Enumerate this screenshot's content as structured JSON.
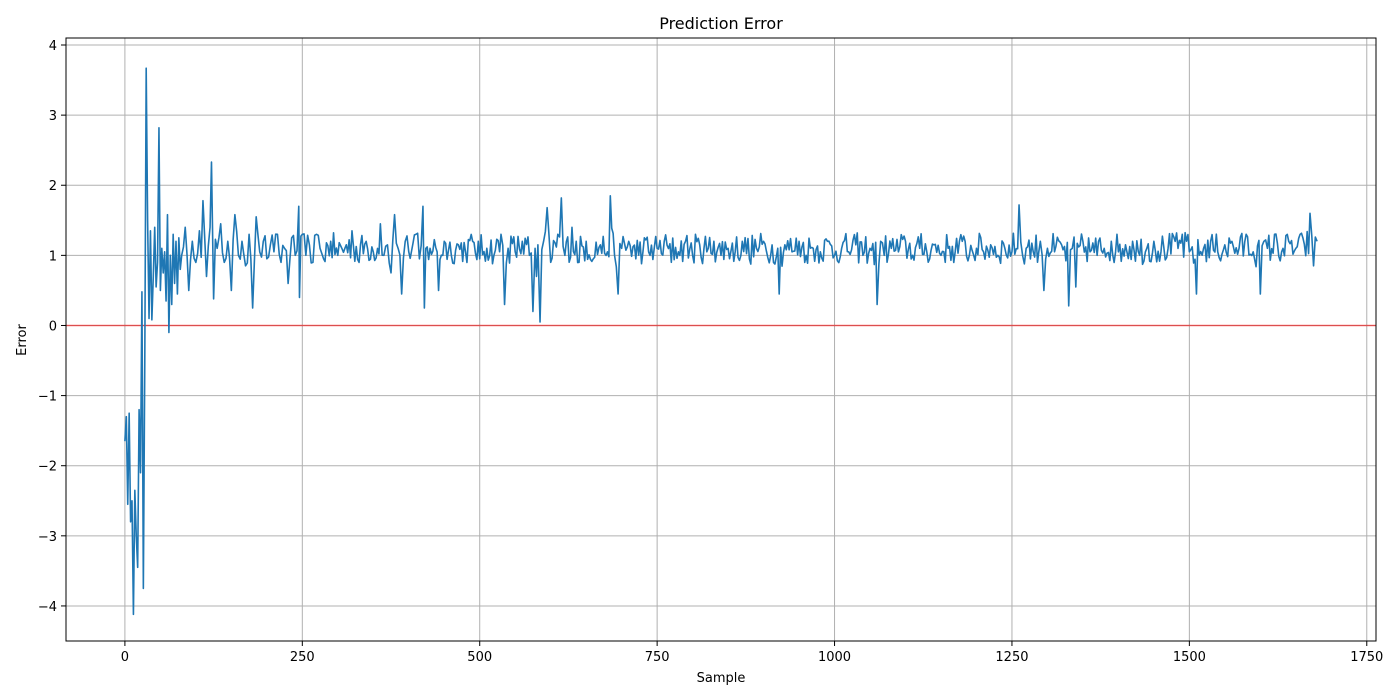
{
  "chart_data": {
    "type": "line",
    "title": "Prediction Error",
    "xlabel": "Sample",
    "ylabel": "Error",
    "xlim": [
      -83,
      1763
    ],
    "ylim": [
      -4.5,
      4.1
    ],
    "x_ticks": [
      0,
      250,
      500,
      750,
      1000,
      1250,
      1500,
      1750
    ],
    "y_ticks": [
      -4,
      -3,
      -2,
      -1,
      0,
      1,
      2,
      3,
      4
    ],
    "grid": true,
    "legend": "none",
    "reference_line": {
      "y": 0,
      "color": "#ff0000"
    },
    "series": [
      {
        "color": "#1f77b4",
        "n_samples": 1680,
        "points": [
          [
            0,
            -1.65
          ],
          [
            2,
            -1.3
          ],
          [
            4,
            -2.55
          ],
          [
            6,
            -1.25
          ],
          [
            8,
            -2.8
          ],
          [
            10,
            -2.5
          ],
          [
            12,
            -4.12
          ],
          [
            14,
            -2.35
          ],
          [
            16,
            -3.0
          ],
          [
            18,
            -3.45
          ],
          [
            20,
            -1.2
          ],
          [
            22,
            -2.1
          ],
          [
            24,
            0.48
          ],
          [
            26,
            -3.75
          ],
          [
            28,
            -0.55
          ],
          [
            30,
            3.67
          ],
          [
            32,
            1.5
          ],
          [
            34,
            0.1
          ],
          [
            36,
            1.35
          ],
          [
            38,
            0.08
          ],
          [
            40,
            0.7
          ],
          [
            42,
            1.4
          ],
          [
            44,
            0.55
          ],
          [
            46,
            0.9
          ],
          [
            48,
            2.82
          ],
          [
            50,
            0.5
          ],
          [
            52,
            1.1
          ],
          [
            54,
            0.75
          ],
          [
            56,
            1.05
          ],
          [
            58,
            0.35
          ],
          [
            60,
            1.58
          ],
          [
            62,
            -0.1
          ],
          [
            64,
            1.0
          ],
          [
            66,
            0.3
          ],
          [
            68,
            1.3
          ],
          [
            70,
            0.6
          ],
          [
            72,
            1.2
          ],
          [
            74,
            0.45
          ],
          [
            76,
            1.25
          ],
          [
            78,
            0.8
          ],
          [
            80,
            1.0
          ],
          [
            85,
            1.4
          ],
          [
            90,
            0.5
          ],
          [
            95,
            1.2
          ],
          [
            100,
            0.9
          ],
          [
            105,
            1.35
          ],
          [
            110,
            1.78
          ],
          [
            115,
            0.7
          ],
          [
            120,
            1.4
          ],
          [
            122,
            2.33
          ],
          [
            125,
            0.38
          ],
          [
            130,
            1.1
          ],
          [
            135,
            1.45
          ],
          [
            140,
            0.9
          ],
          [
            145,
            1.2
          ],
          [
            150,
            0.5
          ],
          [
            155,
            1.58
          ],
          [
            160,
            1.0
          ],
          [
            165,
            1.2
          ],
          [
            170,
            0.85
          ],
          [
            175,
            1.3
          ],
          [
            180,
            0.25
          ],
          [
            185,
            1.55
          ],
          [
            190,
            1.05
          ],
          [
            195,
            1.2
          ],
          [
            200,
            0.95
          ],
          [
            205,
            1.15
          ],
          [
            210,
            1.05
          ],
          [
            215,
            1.3
          ],
          [
            220,
            0.9
          ],
          [
            225,
            1.1
          ],
          [
            230,
            0.6
          ],
          [
            235,
            1.25
          ],
          [
            240,
            1.0
          ],
          [
            245,
            1.7
          ],
          [
            246,
            0.4
          ],
          [
            250,
            1.3
          ],
          [
            255,
            1.0
          ],
          [
            260,
            1.15
          ],
          [
            265,
            0.9
          ],
          [
            270,
            1.3
          ],
          [
            275,
            1.1
          ],
          [
            280,
            0.95
          ],
          [
            290,
            1.2
          ],
          [
            300,
            1.0
          ],
          [
            310,
            1.1
          ],
          [
            320,
            1.35
          ],
          [
            330,
            0.9
          ],
          [
            340,
            1.2
          ],
          [
            350,
            1.05
          ],
          [
            360,
            1.45
          ],
          [
            365,
            1.0
          ],
          [
            370,
            1.15
          ],
          [
            375,
            0.75
          ],
          [
            380,
            1.58
          ],
          [
            385,
            1.1
          ],
          [
            390,
            0.45
          ],
          [
            395,
            1.2
          ],
          [
            400,
            1.05
          ],
          [
            410,
            1.3
          ],
          [
            415,
            0.95
          ],
          [
            420,
            1.7
          ],
          [
            422,
            0.25
          ],
          [
            430,
            1.1
          ],
          [
            440,
            1.05
          ],
          [
            442,
            0.5
          ],
          [
            450,
            1.2
          ],
          [
            460,
            1.0
          ],
          [
            470,
            1.15
          ],
          [
            480,
            1.05
          ],
          [
            490,
            1.2
          ],
          [
            500,
            0.95
          ],
          [
            510,
            1.1
          ],
          [
            520,
            1.0
          ],
          [
            530,
            1.3
          ],
          [
            535,
            0.3
          ],
          [
            540,
            1.1
          ],
          [
            550,
            1.05
          ],
          [
            560,
            1.2
          ],
          [
            570,
            1.0
          ],
          [
            575,
            0.2
          ],
          [
            578,
            1.1
          ],
          [
            580,
            0.7
          ],
          [
            582,
            1.15
          ],
          [
            585,
            0.05
          ],
          [
            590,
            1.2
          ],
          [
            595,
            1.68
          ],
          [
            600,
            0.9
          ],
          [
            610,
            1.3
          ],
          [
            615,
            1.82
          ],
          [
            620,
            1.0
          ],
          [
            630,
            1.4
          ],
          [
            640,
            0.9
          ],
          [
            650,
            1.2
          ],
          [
            660,
            0.95
          ],
          [
            670,
            1.15
          ],
          [
            680,
            1.05
          ],
          [
            684,
            1.85
          ],
          [
            690,
            1.0
          ],
          [
            695,
            0.45
          ],
          [
            700,
            1.1
          ],
          [
            710,
            1.2
          ],
          [
            720,
            0.95
          ],
          [
            730,
            1.05
          ],
          [
            740,
            1.0
          ],
          [
            750,
            1.1
          ],
          [
            760,
            1.2
          ],
          [
            770,
            0.9
          ],
          [
            780,
            1.05
          ],
          [
            790,
            1.2
          ],
          [
            800,
            1.0
          ],
          [
            810,
            1.15
          ],
          [
            820,
            1.05
          ],
          [
            830,
            1.2
          ],
          [
            840,
            1.0
          ],
          [
            850,
            1.1
          ],
          [
            860,
            1.05
          ],
          [
            870,
            1.2
          ],
          [
            880,
            0.95
          ],
          [
            890,
            1.1
          ],
          [
            900,
            1.2
          ],
          [
            910,
            1.0
          ],
          [
            920,
            1.1
          ],
          [
            922,
            0.45
          ],
          [
            930,
            1.15
          ],
          [
            940,
            1.05
          ],
          [
            950,
            1.2
          ],
          [
            960,
            1.0
          ],
          [
            970,
            1.1
          ],
          [
            980,
            1.05
          ],
          [
            990,
            1.2
          ],
          [
            1000,
            1.0
          ],
          [
            1010,
            1.1
          ],
          [
            1020,
            1.05
          ],
          [
            1030,
            1.15
          ],
          [
            1040,
            1.0
          ],
          [
            1050,
            1.1
          ],
          [
            1060,
            0.3
          ],
          [
            1065,
            1.2
          ],
          [
            1070,
            1.0
          ],
          [
            1080,
            1.1
          ],
          [
            1090,
            1.05
          ],
          [
            1100,
            1.2
          ],
          [
            1110,
            1.0
          ],
          [
            1120,
            1.1
          ],
          [
            1130,
            1.05
          ],
          [
            1140,
            1.15
          ],
          [
            1150,
            1.0
          ],
          [
            1160,
            1.1
          ],
          [
            1170,
            1.05
          ],
          [
            1180,
            1.2
          ],
          [
            1190,
            1.0
          ],
          [
            1200,
            1.1
          ],
          [
            1210,
            1.05
          ],
          [
            1220,
            1.15
          ],
          [
            1230,
            1.0
          ],
          [
            1240,
            1.1
          ],
          [
            1250,
            1.05
          ],
          [
            1260,
            1.72
          ],
          [
            1265,
            1.0
          ],
          [
            1270,
            1.1
          ],
          [
            1280,
            1.05
          ],
          [
            1290,
            1.2
          ],
          [
            1295,
            0.5
          ],
          [
            1300,
            1.1
          ],
          [
            1310,
            1.05
          ],
          [
            1320,
            1.15
          ],
          [
            1330,
            0.28
          ],
          [
            1335,
            1.1
          ],
          [
            1340,
            0.55
          ],
          [
            1350,
            1.2
          ],
          [
            1360,
            1.05
          ],
          [
            1370,
            1.0
          ],
          [
            1380,
            1.1
          ],
          [
            1390,
            1.2
          ],
          [
            1400,
            1.05
          ],
          [
            1410,
            1.15
          ],
          [
            1420,
            1.2
          ],
          [
            1430,
            1.0
          ],
          [
            1440,
            1.1
          ],
          [
            1450,
            1.2
          ],
          [
            1460,
            1.05
          ],
          [
            1470,
            1.1
          ],
          [
            1480,
            1.2
          ],
          [
            1490,
            1.3
          ],
          [
            1500,
            1.05
          ],
          [
            1510,
            0.45
          ],
          [
            1520,
            1.1
          ],
          [
            1530,
            1.2
          ],
          [
            1540,
            1.05
          ],
          [
            1550,
            1.15
          ],
          [
            1560,
            1.2
          ],
          [
            1570,
            1.1
          ],
          [
            1580,
            1.3
          ],
          [
            1590,
            1.05
          ],
          [
            1600,
            0.45
          ],
          [
            1605,
            1.2
          ],
          [
            1610,
            1.1
          ],
          [
            1620,
            1.3
          ],
          [
            1630,
            1.05
          ],
          [
            1640,
            1.2
          ],
          [
            1650,
            1.1
          ],
          [
            1660,
            1.25
          ],
          [
            1670,
            1.6
          ],
          [
            1675,
            0.85
          ],
          [
            1680,
            1.2
          ]
        ]
      }
    ]
  }
}
